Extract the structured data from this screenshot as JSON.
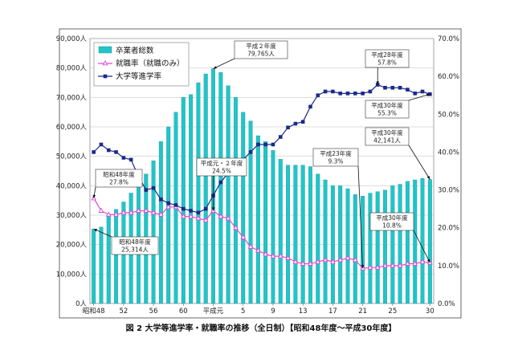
{
  "chart_data": {
    "type": "bar+line",
    "caption": "図 2 大学等進学率・就職率の推移（全日制）【昭和48年度～平成30年度】",
    "x_tick_labels": [
      "昭和48",
      "52",
      "56",
      "60",
      "平成元",
      "5",
      "9",
      "13",
      "17",
      "21",
      "25",
      "30"
    ],
    "x_tick_years": [
      1973,
      1977,
      1981,
      1985,
      1989,
      1993,
      1997,
      2001,
      2005,
      2009,
      2013,
      2018
    ],
    "y_left": {
      "ticks": [
        "0人",
        "10,000人",
        "20,000人",
        "30,000人",
        "40,000人",
        "50,000人",
        "60,000人",
        "70,000人",
        "80,000人",
        "90,000人"
      ],
      "min": 0,
      "max": 90000
    },
    "y_right": {
      "ticks": [
        "0.0%",
        "10.0%",
        "20.0%",
        "30.0%",
        "40.0%",
        "50.0%",
        "60.0%",
        "70.0%"
      ],
      "min": 0,
      "max": 70
    },
    "years": [
      1973,
      1974,
      1975,
      1976,
      1977,
      1978,
      1979,
      1980,
      1981,
      1982,
      1983,
      1984,
      1985,
      1986,
      1987,
      1988,
      1989,
      1990,
      1991,
      1992,
      1993,
      1994,
      1995,
      1996,
      1997,
      1998,
      1999,
      2000,
      2001,
      2002,
      2003,
      2004,
      2005,
      2006,
      2007,
      2008,
      2009,
      2010,
      2011,
      2012,
      2013,
      2014,
      2015,
      2016,
      2017,
      2018
    ],
    "series": [
      {
        "name": "卒業者総数",
        "type": "bar",
        "axis": "left",
        "color": "#22c4c8",
        "values": [
          25314,
          26000,
          29500,
          32000,
          34500,
          37500,
          40000,
          44000,
          48500,
          55000,
          60000,
          65000,
          70000,
          71000,
          75000,
          78000,
          79765,
          78500,
          74000,
          70000,
          65000,
          62000,
          57000,
          55000,
          52000,
          49000,
          47000,
          47000,
          47000,
          46500,
          44000,
          42000,
          40000,
          40000,
          39000,
          37000,
          36500,
          37500,
          38000,
          38500,
          40000,
          40500,
          41500,
          42000,
          42500,
          42141
        ]
      },
      {
        "name": "就職率（就職のみ）",
        "type": "line",
        "axis": "right",
        "color": "#e04ad4",
        "values": [
          27.8,
          24.5,
          23.5,
          23.5,
          24.0,
          24.0,
          24.5,
          24.5,
          24.0,
          23.5,
          25.5,
          25.5,
          23.0,
          23.0,
          22.5,
          22.0,
          24.5,
          23.0,
          22.5,
          20.0,
          17.5,
          15.0,
          14.0,
          13.0,
          12.5,
          12.5,
          12.0,
          11.0,
          10.5,
          10.5,
          11.0,
          11.5,
          11.0,
          11.5,
          12.0,
          11.5,
          9.3,
          9.5,
          9.5,
          10.0,
          10.0,
          10.0,
          10.5,
          10.5,
          11.0,
          10.8
        ]
      },
      {
        "name": "大学等進学率",
        "type": "line",
        "axis": "right",
        "color": "#1a2a8a",
        "values": [
          40.0,
          42.0,
          40.5,
          40.0,
          38.5,
          38.0,
          33.5,
          30.0,
          30.5,
          27.5,
          26.5,
          26.0,
          25.0,
          24.5,
          24.0,
          25.0,
          28.5,
          32.0,
          34.5,
          36.5,
          38.0,
          40.0,
          42.0,
          42.0,
          42.0,
          44.0,
          46.5,
          47.5,
          48.0,
          52.0,
          55.0,
          56.0,
          56.0,
          55.5,
          55.5,
          55.5,
          55.5,
          56.0,
          57.8,
          57.0,
          57.0,
          57.0,
          56.5,
          55.5,
          56.0,
          55.3
        ]
      }
    ],
    "legend": {
      "position": "top-left",
      "entries": [
        "卒業者総数",
        "就職率（就職のみ）",
        "大学等進学率"
      ]
    },
    "annotations": [
      {
        "year": 1973,
        "series": "就職率（就職のみ）",
        "label": [
          "昭和48年度",
          "27.8%"
        ]
      },
      {
        "year": 1973,
        "series": "卒業者総数",
        "label": [
          "昭和48年度",
          "25,314人"
        ]
      },
      {
        "year": 1989,
        "series": "卒業者総数",
        "label": [
          "平成２年度",
          "79,765人"
        ]
      },
      {
        "year": 1989,
        "series": "就職率（就職のみ）",
        "label": [
          "平成元・２年度",
          "24.5%"
        ]
      },
      {
        "year": 2009,
        "series": "就職率（就職のみ）",
        "label": [
          "平成23年度",
          "9.3%"
        ]
      },
      {
        "year": 2011,
        "series": "大学等進学率",
        "label": [
          "平成28年度",
          "57.8%"
        ]
      },
      {
        "year": 2018,
        "series": "大学等進学率",
        "label": [
          "平成30年度",
          "55.3%"
        ]
      },
      {
        "year": 2018,
        "series": "卒業者総数",
        "label": [
          "平成30年度",
          "42,141人"
        ]
      },
      {
        "year": 2018,
        "series": "就職率（就職のみ）",
        "label": [
          "平成30年度",
          "10.8%"
        ]
      }
    ]
  }
}
